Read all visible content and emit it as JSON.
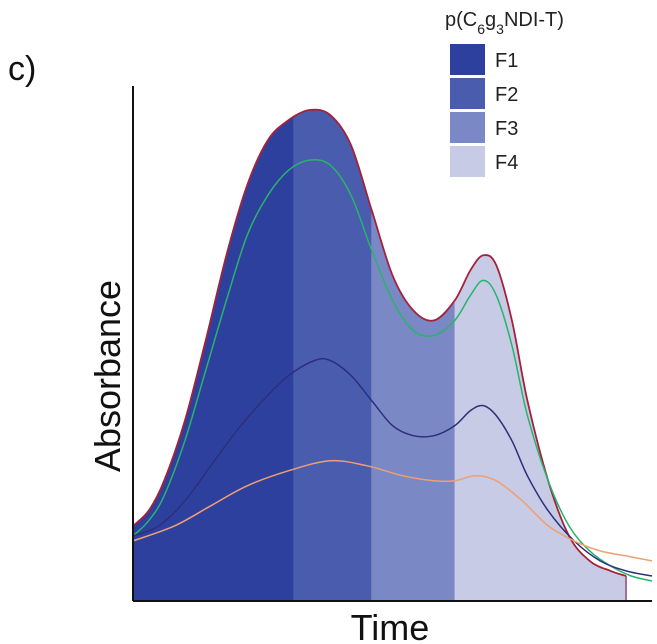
{
  "panel_label": "c)",
  "chart_data": {
    "type": "area",
    "xlabel": "Time",
    "ylabel": "Absorbance",
    "legend_title_parts": [
      "p(C",
      "6",
      "g",
      "3",
      "NDI-T)"
    ],
    "legend_position": "top-right",
    "xlim": [
      0,
      100
    ],
    "ylim": [
      0,
      100
    ],
    "fractions": [
      {
        "label": "F1",
        "x_start": 0,
        "x_end": 31,
        "color": "#2e409e"
      },
      {
        "label": "F2",
        "x_start": 31,
        "x_end": 46,
        "color": "#4a5cad"
      },
      {
        "label": "F3",
        "x_start": 46,
        "x_end": 62,
        "color": "#7b88c6"
      },
      {
        "label": "F4",
        "x_start": 62,
        "x_end": 95,
        "color": "#c7cbe6"
      }
    ],
    "series": [
      {
        "color": "#a3223a",
        "x": [
          0,
          3,
          6,
          10,
          14,
          18,
          22,
          26,
          30,
          34,
          38,
          42,
          46,
          50,
          54,
          58,
          62,
          65,
          67.5,
          70,
          73,
          76,
          80,
          84,
          88,
          92,
          95
        ],
        "y": [
          15,
          18,
          24,
          36,
          52,
          69,
          83,
          92,
          96,
          98,
          97,
          91,
          78,
          65,
          58,
          56,
          60,
          66,
          69,
          67,
          56,
          40,
          24,
          13,
          8,
          6,
          5
        ]
      },
      {
        "color": "#29b36b",
        "x": [
          0,
          3,
          6,
          10,
          14,
          18,
          22,
          26,
          30,
          34,
          38,
          42,
          46,
          50,
          54,
          58,
          62,
          65,
          67.5,
          70,
          73,
          76,
          80,
          84,
          88,
          92,
          96,
          100
        ],
        "y": [
          13,
          16,
          21,
          32,
          46,
          60,
          73,
          81,
          86,
          88,
          87,
          81,
          70,
          60,
          54,
          53,
          56,
          61,
          64,
          61,
          51,
          37,
          24,
          15,
          10,
          7,
          5,
          4
        ]
      },
      {
        "color": "#2c2f7a",
        "x": [
          0,
          5,
          10,
          15,
          20,
          25,
          30,
          35,
          38,
          42,
          46,
          50,
          54,
          58,
          62,
          65,
          67.5,
          70,
          73,
          76,
          80,
          85,
          90,
          95,
          100
        ],
        "y": [
          13,
          15,
          20,
          27,
          34,
          40,
          45,
          48,
          48,
          45,
          40,
          35,
          33,
          33,
          35,
          38,
          39,
          37,
          32,
          25,
          18,
          12,
          8,
          6,
          5
        ]
      },
      {
        "color": "#f0a070",
        "x": [
          0,
          8,
          15,
          22,
          30,
          38,
          45,
          52,
          58,
          62,
          66,
          70,
          75,
          80,
          85,
          90,
          95,
          100
        ],
        "y": [
          12,
          15,
          19,
          23,
          26,
          28,
          27,
          25,
          24,
          24,
          25,
          24,
          20,
          15,
          12,
          10,
          9,
          8
        ]
      }
    ]
  }
}
